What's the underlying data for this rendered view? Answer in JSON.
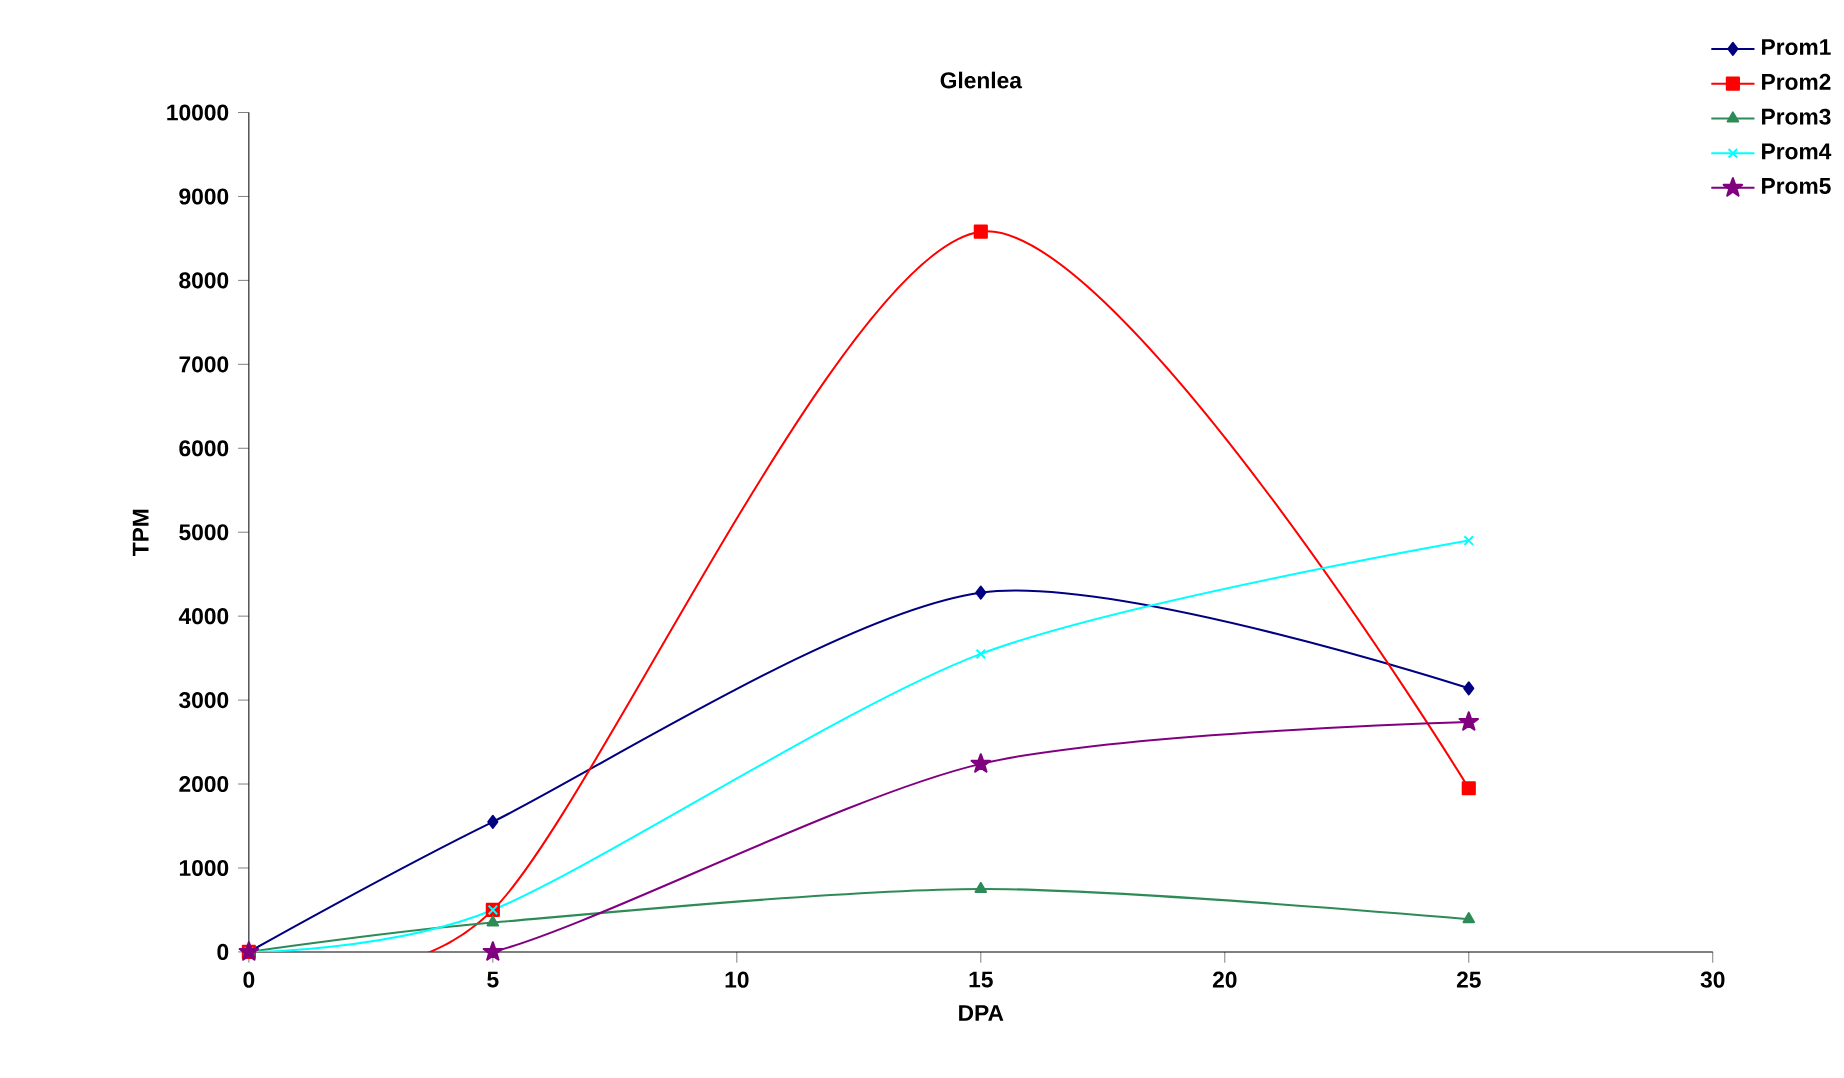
{
  "chart_data": {
    "type": "line",
    "title": "Glenlea",
    "xlabel": "DPA",
    "ylabel": "TPM",
    "x": [
      0,
      5,
      15,
      25
    ],
    "series": [
      {
        "name": "Prom1",
        "color": "#000080",
        "marker": "diamond",
        "values": [
          0,
          1550,
          4280,
          3140
        ]
      },
      {
        "name": "Prom2",
        "color": "#ff0000",
        "marker": "square",
        "values": [
          0,
          500,
          8580,
          1950
        ]
      },
      {
        "name": "Prom3",
        "color": "#2e8b57",
        "marker": "triangle",
        "values": [
          0,
          350,
          750,
          390
        ]
      },
      {
        "name": "Prom4",
        "color": "#00ffff",
        "marker": "cross",
        "values": [
          0,
          500,
          3550,
          4900
        ]
      },
      {
        "name": "Prom5",
        "color": "#800080",
        "marker": "star",
        "values": [
          0,
          0,
          2240,
          2740
        ]
      }
    ],
    "xlim": [
      0,
      30
    ],
    "xticks": [
      0,
      5,
      10,
      15,
      20,
      25,
      30
    ],
    "ylim": [
      0,
      10000
    ],
    "yticks": [
      0,
      1000,
      2000,
      3000,
      4000,
      5000,
      6000,
      7000,
      8000,
      9000,
      10000
    ],
    "grid": false,
    "legend": "top right"
  }
}
